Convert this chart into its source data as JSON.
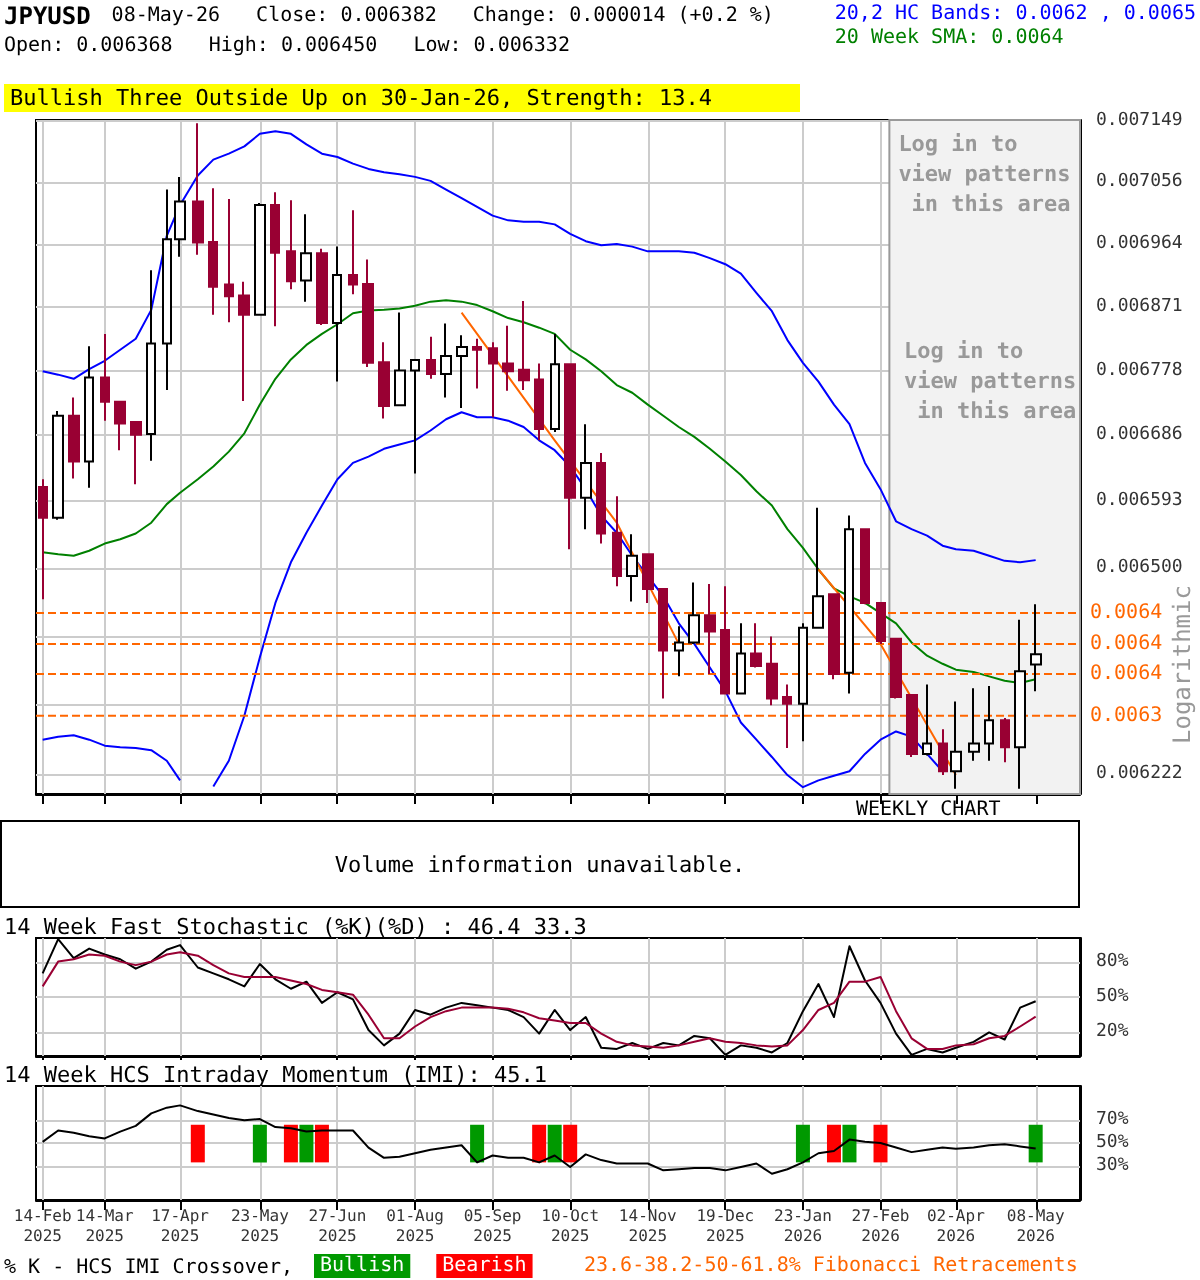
{
  "chart_data": [
    {
      "type": "candlestick",
      "title": "JPYUSD",
      "subtitle": "08-May-26   Close: 0.006382   Change: 0.000014 (+0.2 %)",
      "ylabel": "Logarithmic",
      "x": [
        "2025-02-14",
        "2025-02-21",
        "2025-02-28",
        "2025-03-07",
        "2025-03-14",
        "2025-03-21",
        "2025-03-28",
        "2025-04-04",
        "2025-04-11",
        "2025-04-17",
        "2025-04-25",
        "2025-05-02",
        "2025-05-09",
        "2025-05-16",
        "2025-05-23",
        "2025-05-30",
        "2025-06-06",
        "2025-06-13",
        "2025-06-20",
        "2025-06-27",
        "2025-07-04",
        "2025-07-11",
        "2025-07-18",
        "2025-07-25",
        "2025-08-01",
        "2025-08-08",
        "2025-08-15",
        "2025-08-22",
        "2025-08-29",
        "2025-09-05",
        "2025-09-12",
        "2025-09-19",
        "2025-09-26",
        "2025-10-03",
        "2025-10-10",
        "2025-10-17",
        "2025-10-24",
        "2025-10-31",
        "2025-11-07",
        "2025-11-14",
        "2025-11-21",
        "2025-11-28",
        "2025-12-05",
        "2025-12-12",
        "2025-12-19",
        "2025-12-26",
        "2026-01-02",
        "2026-01-09",
        "2026-01-16",
        "2026-01-23",
        "2026-01-30",
        "2026-02-06",
        "2026-02-13",
        "2026-02-20",
        "2026-02-27",
        "2026-03-06",
        "2026-03-13",
        "2026-03-20",
        "2026-03-27",
        "2026-04-02",
        "2026-04-10",
        "2026-04-17",
        "2026-04-24",
        "2026-05-01",
        "2026-05-08"
      ],
      "ohlc": [
        [
          0.006613,
          0.006624,
          0.006457,
          0.00657
        ],
        [
          0.00657,
          0.006721,
          0.006567,
          0.006714
        ],
        [
          0.006714,
          0.00674,
          0.006625,
          0.006649
        ],
        [
          0.006649,
          0.006814,
          0.006612,
          0.006769
        ],
        [
          0.006769,
          0.006832,
          0.006707,
          0.006734
        ],
        [
          0.006734,
          0.006734,
          0.006665,
          0.006703
        ],
        [
          0.006705,
          0.006705,
          0.006617,
          0.006687
        ],
        [
          0.006688,
          0.006925,
          0.00665,
          0.006818
        ],
        [
          0.006818,
          0.007045,
          0.006751,
          0.006971
        ],
        [
          0.006971,
          0.007064,
          0.006945,
          0.007027
        ],
        [
          0.007027,
          0.007145,
          0.006948,
          0.006966
        ],
        [
          0.006967,
          0.007047,
          0.00686,
          0.006901
        ],
        [
          0.006904,
          0.007031,
          0.006849,
          0.006887
        ],
        [
          0.006888,
          0.006908,
          0.006735,
          0.00686
        ],
        [
          0.00686,
          0.007025,
          0.00686,
          0.007022
        ],
        [
          0.007022,
          0.007041,
          0.006843,
          0.006951
        ],
        [
          0.006953,
          0.007029,
          0.006897,
          0.006909
        ],
        [
          0.00691,
          0.007008,
          0.006879,
          0.00695
        ],
        [
          0.00695,
          0.006957,
          0.006845,
          0.006848
        ],
        [
          0.006848,
          0.00696,
          0.006763,
          0.006918
        ],
        [
          0.006918,
          0.007014,
          0.00689,
          0.006904
        ],
        [
          0.006905,
          0.006941,
          0.006784,
          0.00679
        ],
        [
          0.006791,
          0.00682,
          0.00671,
          0.006728
        ],
        [
          0.006729,
          0.006863,
          0.006729,
          0.006779
        ],
        [
          0.006779,
          0.006794,
          0.006632,
          0.006794
        ],
        [
          0.006794,
          0.006828,
          0.006767,
          0.006774
        ],
        [
          0.006774,
          0.006847,
          0.00674,
          0.0068
        ],
        [
          0.0068,
          0.00683,
          0.006725,
          0.006813
        ],
        [
          0.006813,
          0.006825,
          0.006753,
          0.006809
        ],
        [
          0.006811,
          0.00682,
          0.006712,
          0.006789
        ],
        [
          0.006789,
          0.006844,
          0.00675,
          0.006778
        ],
        [
          0.00678,
          0.00688,
          0.006751,
          0.006765
        ],
        [
          0.006766,
          0.006789,
          0.006679,
          0.006695
        ],
        [
          0.006695,
          0.006832,
          0.006691,
          0.006788
        ],
        [
          0.006788,
          0.006788,
          0.006526,
          0.006598
        ],
        [
          0.006598,
          0.006702,
          0.006554,
          0.006647
        ],
        [
          0.006647,
          0.006661,
          0.006534,
          0.006548
        ],
        [
          0.006549,
          0.0066,
          0.006475,
          0.006489
        ],
        [
          0.006489,
          0.006547,
          0.006454,
          0.006517
        ],
        [
          0.006519,
          0.006519,
          0.006452,
          0.006471
        ],
        [
          0.006471,
          0.006471,
          0.006322,
          0.006387
        ],
        [
          0.006387,
          0.00642,
          0.006352,
          0.006398
        ],
        [
          0.006398,
          0.00648,
          0.006396,
          0.006435
        ],
        [
          0.006435,
          0.006478,
          0.006355,
          0.006413
        ],
        [
          0.006415,
          0.006475,
          0.006329,
          0.006329
        ],
        [
          0.006329,
          0.006424,
          0.006329,
          0.006383
        ],
        [
          0.006383,
          0.006424,
          0.006364,
          0.006366
        ],
        [
          0.006369,
          0.006406,
          0.006313,
          0.006322
        ],
        [
          0.006324,
          0.006341,
          0.006256,
          0.006315
        ],
        [
          0.006315,
          0.006424,
          0.006265,
          0.006418
        ],
        [
          0.006418,
          0.006584,
          0.006418,
          0.006461
        ],
        [
          0.006464,
          0.006464,
          0.006348,
          0.006355
        ],
        [
          0.006357,
          0.006573,
          0.006329,
          0.006554
        ],
        [
          0.006554,
          0.006554,
          0.00645,
          0.006452
        ],
        [
          0.006452,
          0.006452,
          0.006396,
          0.0064
        ],
        [
          0.006403,
          0.006403,
          0.006322,
          0.006324
        ],
        [
          0.006327,
          0.006327,
          0.006244,
          0.006248
        ],
        [
          0.006248,
          0.006341,
          0.006246,
          0.006262
        ],
        [
          0.006262,
          0.006281,
          0.00622,
          0.006225
        ],
        [
          0.006225,
          0.006318,
          0.006202,
          0.006251
        ],
        [
          0.006251,
          0.006336,
          0.006239,
          0.006262
        ],
        [
          0.006262,
          0.006339,
          0.006239,
          0.006293
        ],
        [
          0.006293,
          0.006296,
          0.006237,
          0.006257
        ],
        [
          0.006257,
          0.006429,
          0.006202,
          0.006359
        ],
        [
          0.006368,
          0.00645,
          0.006332,
          0.006382
        ]
      ],
      "colors": [
        "#990033",
        "#ffffff",
        "#990033",
        "#ffffff",
        "#990033",
        "#990033",
        "#990033",
        "#ffffff",
        "#ffffff",
        "#ffffff",
        "#990033",
        "#990033",
        "#990033",
        "#990033",
        "#ffffff",
        "#990033",
        "#990033",
        "#ffffff",
        "#990033",
        "#ffffff",
        "#990033",
        "#990033",
        "#990033",
        "#ffffff",
        "#ffffff",
        "#990033",
        "#ffffff",
        "#ffffff",
        "#990033",
        "#990033",
        "#990033",
        "#990033",
        "#990033",
        "#ffffff",
        "#990033",
        "#ffffff",
        "#990033",
        "#990033",
        "#ffffff",
        "#990033",
        "#990033",
        "#ffffff",
        "#ffffff",
        "#990033",
        "#990033",
        "#ffffff",
        "#990033",
        "#990033",
        "#990033",
        "#ffffff",
        "#ffffff",
        "#990033",
        "#ffffff",
        "#990033",
        "#990033",
        "#990033",
        "#990033",
        "#ffffff",
        "#990033",
        "#ffffff",
        "#ffffff",
        "#ffffff",
        "#990033",
        "#ffffff",
        "#ffffff"
      ],
      "series": [
        {
          "type": "line",
          "name": "20,2 HC Bands: 0.0062 , 0.0065",
          "color": "#0000ff",
          "values": [
            0.006778,
            0.006773,
            0.006767,
            0.006781,
            0.006793,
            0.006809,
            0.006825,
            0.006867,
            0.006976,
            0.007022,
            0.007066,
            0.00709,
            0.007099,
            0.00711,
            0.007129,
            0.007133,
            0.007129,
            0.007113,
            0.007099,
            0.007094,
            0.007084,
            0.007076,
            0.007071,
            0.007068,
            0.007064,
            0.007058,
            0.007045,
            0.007032,
            0.007019,
            0.007006,
            0.006999,
            0.006997,
            0.006997,
            0.006993,
            0.006979,
            0.006968,
            0.006962,
            0.006964,
            0.00696,
            0.006953,
            0.006953,
            0.006953,
            0.006951,
            0.006943,
            0.006934,
            0.00692,
            0.006892,
            0.006865,
            0.006823,
            0.00679,
            0.006763,
            0.00673,
            0.006702,
            0.006647,
            0.00661,
            0.006565,
            0.006554,
            0.006545,
            0.006531,
            0.006526,
            0.006524,
            0.006517,
            0.00651,
            0.006508,
            0.006511
          ]
        },
        {
          "type": "line",
          "color": "#0000ff",
          "values": [
            0.006267,
            0.006271,
            0.006273,
            0.006267,
            0.006259,
            0.006257,
            0.006256,
            0.006253,
            0.006239,
            0.006213,
            null,
            0.006205,
            0.006239,
            0.006299,
            0.006378,
            0.006452,
            0.006508,
            0.006549,
            0.006587,
            0.006624,
            0.006647,
            0.006656,
            0.006667,
            0.006673,
            0.006679,
            0.006693,
            0.006709,
            0.006719,
            0.006712,
            0.006712,
            0.006707,
            0.006698,
            0.006679,
            0.006665,
            0.006642,
            0.00661,
            0.006573,
            0.006549,
            0.006517,
            0.006489,
            0.006461,
            0.006424,
            0.006396,
            0.006364,
            0.006332,
            0.00629,
            0.006267,
            0.006244,
            0.00622,
            0.006204,
            0.006213,
            0.006219,
            0.006225,
            0.006248,
            0.006267,
            0.006278,
            0.006271,
            0.006248,
            0.006225,
            null,
            null,
            null,
            null,
            null,
            null
          ]
        },
        {
          "type": "line",
          "name": "20 Week SMA: 0.0064",
          "color": "#008000",
          "values": [
            0.006522,
            0.006519,
            0.006517,
            0.006524,
            0.006534,
            0.00654,
            0.006548,
            0.006563,
            0.006589,
            0.006605,
            0.006624,
            0.006642,
            0.006663,
            0.006689,
            0.00673,
            0.006767,
            0.006795,
            0.006816,
            0.006832,
            0.006846,
            0.006862,
            0.006866,
            0.006867,
            0.006869,
            0.006873,
            0.006879,
            0.006881,
            0.006879,
            0.006874,
            0.006865,
            0.006855,
            0.006849,
            0.006841,
            0.006832,
            0.006809,
            0.006795,
            0.006778,
            0.006758,
            0.006747,
            0.00673,
            0.006714,
            0.006698,
            0.006684,
            0.006667,
            0.006649,
            0.00663,
            0.006607,
            0.006587,
            0.006554,
            0.006528,
            0.006498,
            0.006472,
            0.006461,
            0.006452,
            0.006438,
            0.006424,
            0.006398,
            0.00638,
            0.006369,
            0.006361,
            0.006358,
            0.006352,
            0.006346,
            0.006343,
            0.006348
          ]
        },
        {
          "type": "line",
          "color": "#ff6600",
          "x": [
            "2025-08-22",
            "2025-10-03",
            "2025-10-31",
            "2025-11-28"
          ],
          "values": [
            0.006863,
            0.006679,
            0.006563,
            0.006396
          ]
        },
        {
          "type": "line",
          "color": "#ff6600",
          "x": [
            "2026-01-30",
            "2026-02-27",
            "2026-04-02"
          ],
          "values": [
            0.006498,
            0.006396,
            0.00622
          ]
        }
      ],
      "xlim": [
        "2025-02-11",
        "2026-05-28"
      ],
      "ylim": [
        0.006195,
        0.00715
      ],
      "xticks": [
        "2025-02-14",
        "2025-03-14",
        "2025-04-17",
        "2025-05-23",
        "2025-06-27",
        "2025-08-01",
        "2025-09-05",
        "2025-10-10",
        "2025-11-14",
        "2025-12-19",
        "2026-01-23",
        "2026-02-27",
        "2026-04-02",
        "2026-05-08"
      ],
      "yticks": [
        0.006222,
        {
          "value": 0.006315,
          "label": null
        },
        {
          "value": 0.006407,
          "label": null
        },
        {
          "value": 0.0065,
          "label": "0.006500"
        },
        0.006593,
        0.006686,
        0.006778,
        0.006871,
        0.006964,
        0.007056,
        0.007149
      ],
      "log": true,
      "grid": true,
      "legend": "top right",
      "tick_labels": "y",
      "marker": "none",
      "ref_lines": [
        {
          "axis": "y",
          "value": 0.006438,
          "label": "0.0064",
          "color": "#ff6600",
          "line_style": "dashed"
        },
        {
          "axis": "y",
          "value": 0.006396,
          "label": "0.0064",
          "color": "#ff6600",
          "line_style": "dashed"
        },
        {
          "axis": "y",
          "value": 0.006355,
          "label": "0.0064",
          "color": "#ff6600",
          "line_style": "dashed"
        },
        {
          "axis": "y",
          "value": 0.006299,
          "label": "0.0063",
          "color": "#ff6600",
          "line_style": "dashed"
        }
      ],
      "bands": [
        {
          "axis": "x",
          "from": "2026-03-03",
          "to": "2026-05-28",
          "label": "Log in to view patterns in this area",
          "color": "#f2f2f2"
        }
      ],
      "annotations": [
        "Open: 0.006368   High: 0.006450   Low: 0.006332",
        "Bullish Three Outside Up on 30-Jan-26, Strength: 13.4",
        "WEEKLY CHART",
        "Log in to view patterns in this area"
      ]
    },
    {
      "type": "other",
      "annotations": [
        "Volume information unavailable."
      ]
    },
    {
      "type": "line",
      "title": "14 Week Fast Stochastic (%K)(%D) : 46.4 33.3",
      "x": [
        "2025-02-14",
        "2025-02-21",
        "2025-02-28",
        "2025-03-07",
        "2025-03-14",
        "2025-03-21",
        "2025-03-28",
        "2025-04-04",
        "2025-04-11",
        "2025-04-17",
        "2025-04-25",
        "2025-05-02",
        "2025-05-09",
        "2025-05-16",
        "2025-05-23",
        "2025-05-30",
        "2025-06-06",
        "2025-06-13",
        "2025-06-20",
        "2025-06-27",
        "2025-07-04",
        "2025-07-11",
        "2025-07-18",
        "2025-07-25",
        "2025-08-01",
        "2025-08-08",
        "2025-08-15",
        "2025-08-22",
        "2025-08-29",
        "2025-09-05",
        "2025-09-12",
        "2025-09-19",
        "2025-09-26",
        "2025-10-03",
        "2025-10-10",
        "2025-10-17",
        "2025-10-24",
        "2025-10-31",
        "2025-11-07",
        "2025-11-14",
        "2025-11-21",
        "2025-11-28",
        "2025-12-05",
        "2025-12-12",
        "2025-12-19",
        "2025-12-26",
        "2026-01-02",
        "2026-01-09",
        "2026-01-16",
        "2026-01-23",
        "2026-01-30",
        "2026-02-06",
        "2026-02-13",
        "2026-02-20",
        "2026-02-27",
        "2026-03-06",
        "2026-03-13",
        "2026-03-20",
        "2026-03-27",
        "2026-04-02",
        "2026-04-10",
        "2026-04-17",
        "2026-04-24",
        "2026-05-01",
        "2026-05-08"
      ],
      "series": [
        {
          "color": "#000000",
          "values": [
            70,
            99,
            83,
            91,
            86,
            82,
            74,
            80,
            90,
            94,
            75,
            70,
            65,
            59,
            78,
            65,
            57,
            63,
            45,
            54,
            48,
            22,
            9,
            19,
            39,
            35,
            41,
            45,
            43,
            41,
            39,
            33,
            19,
            39,
            22,
            33,
            7,
            6,
            11,
            6,
            11,
            9,
            17,
            15,
            1,
            9,
            7,
            3,
            11,
            38,
            61,
            33,
            93,
            64,
            45,
            19,
            1,
            6,
            3,
            7,
            12,
            20,
            14,
            41,
            46.4
          ]
        },
        {
          "color": "#990033",
          "values": [
            59,
            80,
            82,
            86,
            85,
            80,
            77,
            80,
            86,
            88,
            85,
            77,
            70,
            67,
            67,
            67,
            64,
            61,
            56,
            54,
            52,
            35,
            15,
            15,
            25,
            33,
            38,
            41,
            41,
            41,
            40,
            37,
            32,
            30,
            28,
            28,
            19,
            12,
            9,
            8,
            7,
            9,
            12,
            15,
            12,
            11,
            9,
            8,
            9,
            22,
            39,
            45,
            63,
            63,
            67,
            38,
            15,
            6,
            6,
            9,
            10,
            15,
            17,
            25,
            33.3
          ]
        }
      ],
      "xlim": [
        "2025-02-11",
        "2026-05-28"
      ],
      "ylim": [
        0,
        100
      ],
      "xticks": [
        "2025-02-14",
        "2025-03-14",
        "2025-04-17",
        "2025-05-23",
        "2025-06-27",
        "2025-08-01",
        "2025-09-05",
        "2025-10-10",
        "2025-11-14",
        "2025-12-19",
        "2026-01-23",
        "2026-02-27",
        "2026-04-02",
        "2026-05-08"
      ],
      "yticks": [
        {
          "value": 20,
          "label": "20%"
        },
        {
          "value": 50,
          "label": "50%"
        },
        {
          "value": 80,
          "label": "80%"
        }
      ],
      "grid": true,
      "tick_labels": "y",
      "marker": "none"
    },
    {
      "type": "line",
      "title": "14 Week HCS Intraday Momentum (IMI): 45.1",
      "x": [
        "2025-02-14",
        "2025-02-21",
        "2025-02-28",
        "2025-03-07",
        "2025-03-14",
        "2025-03-21",
        "2025-03-28",
        "2025-04-04",
        "2025-04-11",
        "2025-04-17",
        "2025-04-25",
        "2025-05-02",
        "2025-05-09",
        "2025-05-16",
        "2025-05-23",
        "2025-05-30",
        "2025-06-06",
        "2025-06-13",
        "2025-06-20",
        "2025-06-27",
        "2025-07-04",
        "2025-07-11",
        "2025-07-18",
        "2025-07-25",
        "2025-08-01",
        "2025-08-08",
        "2025-08-15",
        "2025-08-22",
        "2025-08-29",
        "2025-09-05",
        "2025-09-12",
        "2025-09-19",
        "2025-09-26",
        "2025-10-03",
        "2025-10-10",
        "2025-10-17",
        "2025-10-24",
        "2025-10-31",
        "2025-11-07",
        "2025-11-14",
        "2025-11-21",
        "2025-11-28",
        "2025-12-05",
        "2025-12-12",
        "2025-12-19",
        "2025-12-26",
        "2026-01-02",
        "2026-01-09",
        "2026-01-16",
        "2026-01-23",
        "2026-01-30",
        "2026-02-06",
        "2026-02-13",
        "2026-02-20",
        "2026-02-27",
        "2026-03-06",
        "2026-03-13",
        "2026-03-20",
        "2026-03-27",
        "2026-04-02",
        "2026-04-10",
        "2026-04-17",
        "2026-04-24",
        "2026-05-01",
        "2026-05-08"
      ],
      "series": [
        {
          "type": "line",
          "color": "#000000",
          "values": [
            51,
            61,
            59,
            56,
            54,
            60,
            65,
            76,
            81,
            83,
            78,
            75,
            72,
            70,
            71,
            64,
            63,
            60,
            61,
            61,
            61,
            46,
            37,
            38,
            41,
            44,
            46,
            48,
            33,
            39,
            37,
            37,
            33,
            39,
            29,
            40,
            35,
            32,
            32,
            32,
            26,
            27,
            28,
            28,
            26,
            29,
            32,
            23,
            27,
            33,
            41,
            43,
            53,
            51,
            50,
            46,
            42,
            44,
            46,
            45,
            46,
            48,
            49,
            47,
            45.1
          ]
        },
        {
          "type": "bar",
          "name": "Bullish",
          "color": "#009900",
          "x": [
            "2025-05-23",
            "2025-06-13",
            "2025-08-29",
            "2025-10-03",
            "2026-01-23",
            "2026-02-13",
            "2026-05-08"
          ],
          "values": [
            33,
            33,
            33,
            33,
            33,
            33,
            33
          ],
          "base": [
            33,
            33,
            33,
            33,
            33,
            33,
            33
          ]
        },
        {
          "type": "bar",
          "name": "Bearish",
          "color": "#ff0000",
          "x": [
            "2025-04-25",
            "2025-06-06",
            "2025-06-20",
            "2025-09-26",
            "2025-10-10",
            "2026-02-06",
            "2026-02-27"
          ],
          "values": [
            33,
            33,
            33,
            33,
            33,
            33,
            33
          ],
          "base": [
            33,
            33,
            33,
            33,
            33,
            33,
            33
          ]
        }
      ],
      "xlim": [
        "2025-02-11",
        "2026-05-28"
      ],
      "ylim": [
        0,
        100
      ],
      "xticks": [
        {
          "value": "2025-02-14",
          "label": "14-Feb\n2025"
        },
        {
          "value": "2025-03-14",
          "label": "14-Mar\n2025"
        },
        {
          "value": "2025-04-17",
          "label": "17-Apr\n2025"
        },
        {
          "value": "2025-05-23",
          "label": "23-May\n2025"
        },
        {
          "value": "2025-06-27",
          "label": "27-Jun\n2025"
        },
        {
          "value": "2025-08-01",
          "label": "01-Aug\n2025"
        },
        {
          "value": "2025-09-05",
          "label": "05-Sep\n2025"
        },
        {
          "value": "2025-10-10",
          "label": "10-Oct\n2025"
        },
        {
          "value": "2025-11-14",
          "label": "14-Nov\n2025"
        },
        {
          "value": "2025-12-19",
          "label": "19-Dec\n2025"
        },
        {
          "value": "2026-01-23",
          "label": "23-Jan\n2026"
        },
        {
          "value": "2026-02-27",
          "label": "27-Feb\n2026"
        },
        {
          "value": "2026-04-02",
          "label": "02-Apr\n2026"
        },
        {
          "value": "2026-05-08",
          "label": "08-May\n2026"
        }
      ],
      "yticks": [
        {
          "value": 30,
          "label": "30%"
        },
        {
          "value": 50,
          "label": "50%"
        },
        {
          "value": 70,
          "label": "70%"
        }
      ],
      "grid": true,
      "marker": "none",
      "legend": "bottom left",
      "legend_title": "% K - HCS IMI Crossover,",
      "annotations": [
        "23.6-38.2-50-61.8% Fibonacci Retracements"
      ]
    }
  ]
}
